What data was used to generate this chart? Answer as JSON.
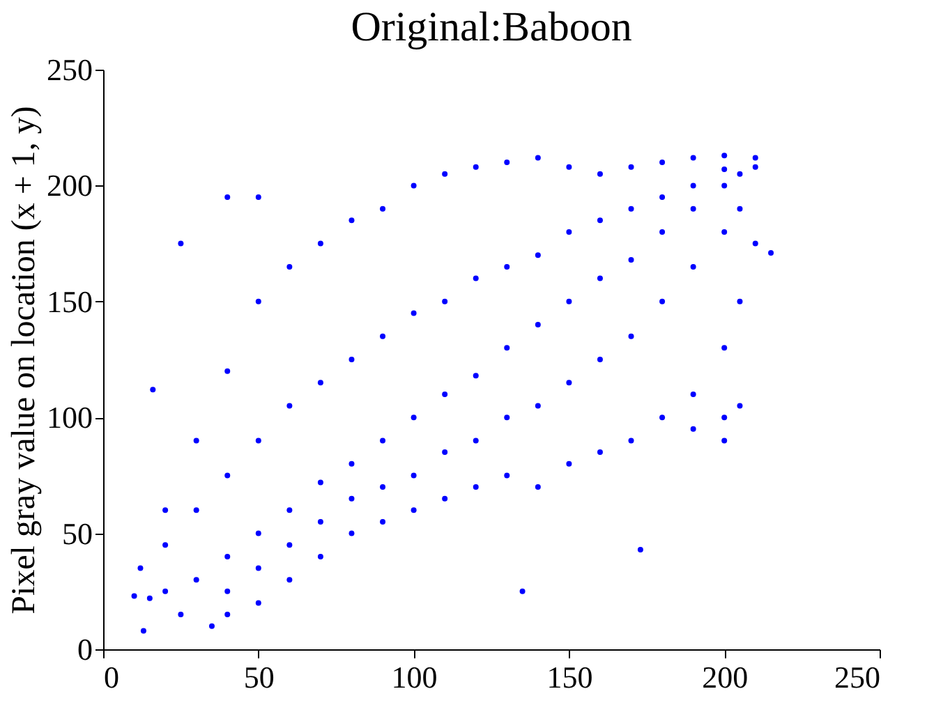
{
  "chart_data": {
    "type": "scatter",
    "title": "Original:Baboon",
    "ylabel": "Pixel gray value on location (x + 1, y)",
    "xlim": [
      0,
      250
    ],
    "ylim": [
      0,
      250
    ],
    "xticks": [
      0,
      50,
      100,
      150,
      200,
      250
    ],
    "yticks": [
      0,
      50,
      100,
      150,
      200,
      250
    ],
    "grid": false,
    "marker": "circle",
    "series": [
      {
        "color": "#0000ff",
        "x": [
          20,
          30,
          40,
          50,
          60,
          70,
          80,
          90,
          100,
          110,
          120,
          130,
          140,
          150,
          160,
          170,
          180,
          190,
          200,
          205,
          210,
          20,
          30,
          40,
          50,
          60,
          70,
          80,
          90,
          100,
          110,
          120,
          130,
          140,
          150,
          160,
          170,
          180,
          190,
          200,
          210,
          40,
          50,
          60,
          70,
          80,
          90,
          100,
          110,
          120,
          130,
          140,
          150,
          160,
          170,
          180,
          190,
          200,
          205,
          210,
          30,
          40,
          50,
          60,
          70,
          80,
          90,
          100,
          110,
          120,
          130,
          140,
          150,
          160,
          170,
          180,
          190,
          200,
          40,
          50,
          60,
          70,
          80,
          90,
          100,
          110,
          120,
          130,
          140,
          150,
          160,
          170,
          180,
          190,
          200,
          205,
          13,
          15,
          12,
          16,
          25,
          40,
          50,
          215,
          173,
          135,
          200,
          200,
          190,
          205,
          10,
          25,
          35,
          20
        ],
        "values": [
          25,
          30,
          40,
          50,
          60,
          72,
          80,
          90,
          100,
          110,
          118,
          130,
          140,
          150,
          160,
          168,
          180,
          190,
          200,
          205,
          208,
          60,
          90,
          120,
          150,
          165,
          175,
          185,
          190,
          200,
          205,
          208,
          210,
          212,
          208,
          205,
          208,
          210,
          212,
          213,
          212,
          15,
          20,
          30,
          40,
          50,
          55,
          60,
          65,
          70,
          75,
          70,
          80,
          85,
          90,
          100,
          110,
          130,
          150,
          175,
          60,
          75,
          90,
          105,
          115,
          125,
          135,
          145,
          150,
          160,
          165,
          170,
          180,
          185,
          190,
          195,
          200,
          207,
          25,
          35,
          45,
          55,
          65,
          70,
          75,
          85,
          90,
          100,
          105,
          115,
          125,
          135,
          150,
          165,
          180,
          190,
          8,
          22,
          35,
          112,
          175,
          195,
          195,
          171,
          43,
          25,
          90,
          100,
          95,
          105,
          23,
          15,
          10,
          45
        ]
      }
    ]
  }
}
